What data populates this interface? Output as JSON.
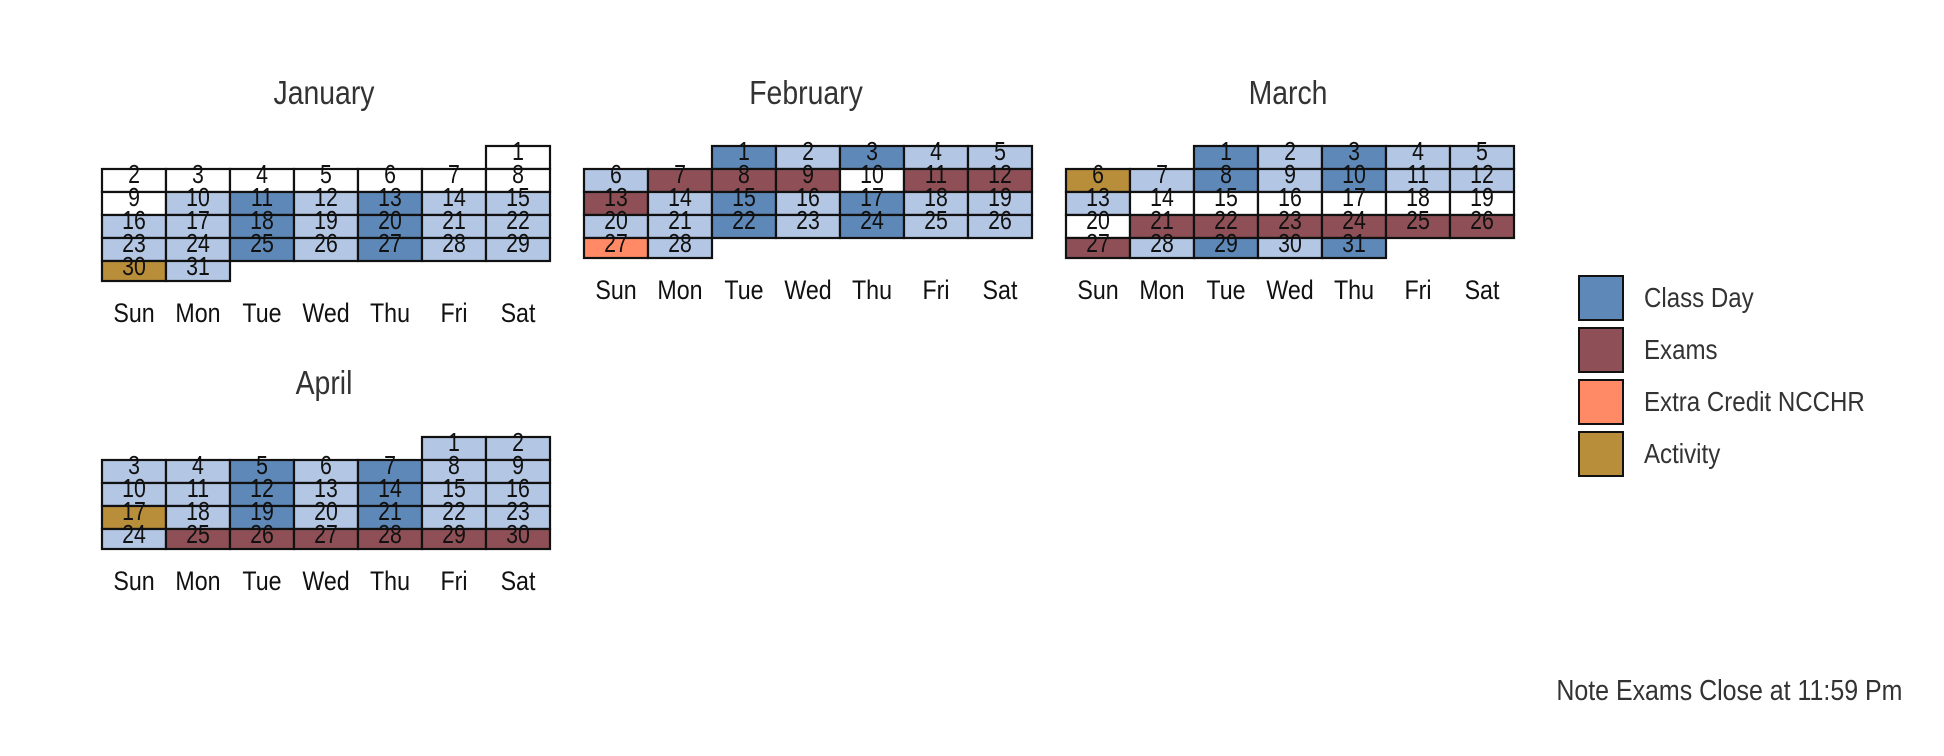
{
  "chart_data": {
    "type": "heatmap",
    "subtype": "calendar",
    "weekdays": [
      "Sun",
      "Mon",
      "Tue",
      "Wed",
      "Thu",
      "Fri",
      "Sat"
    ],
    "categories": [
      {
        "key": "class",
        "label": "Class Day",
        "color": "#5E88B8"
      },
      {
        "key": "exam",
        "label": "Exams",
        "color": "#8E5056"
      },
      {
        "key": "extra",
        "label": "Extra Credit NCCHR",
        "color": "#FF8A65"
      },
      {
        "key": "activity",
        "label": "Activity",
        "color": "#B88E3A"
      }
    ],
    "other_colors": {
      "no_class": "#FFFFFF",
      "other": "#B3C6E3"
    },
    "months": [
      {
        "name": "January",
        "days": 31,
        "first_weekday": 6,
        "fills": {
          "class": [
            11,
            13,
            18,
            20,
            25,
            27
          ],
          "activity": [
            30
          ],
          "white": [
            1,
            2,
            3,
            4,
            5,
            6,
            7,
            8,
            9
          ]
        }
      },
      {
        "name": "February",
        "days": 28,
        "first_weekday": 2,
        "fills": {
          "class": [
            1,
            3,
            15,
            17,
            22,
            24
          ],
          "exam": [
            7,
            8,
            9,
            11,
            12,
            13
          ],
          "extra": [
            27
          ],
          "white": [
            10
          ]
        }
      },
      {
        "name": "March",
        "days": 31,
        "first_weekday": 2,
        "fills": {
          "class": [
            1,
            3,
            8,
            10,
            29,
            31
          ],
          "exam": [
            21,
            22,
            23,
            24,
            25,
            26,
            27
          ],
          "activity": [
            6
          ],
          "white": [
            14,
            15,
            16,
            17,
            18,
            19,
            20
          ]
        }
      },
      {
        "name": "April",
        "days": 30,
        "first_weekday": 5,
        "fills": {
          "class": [
            5,
            7,
            12,
            14,
            19,
            21
          ],
          "exam": [
            25,
            26,
            27,
            28,
            29,
            30
          ],
          "activity": [
            17
          ],
          "white": []
        }
      }
    ],
    "legend_position": "right",
    "note": "Note Exams Close at 11:59 Pm"
  }
}
